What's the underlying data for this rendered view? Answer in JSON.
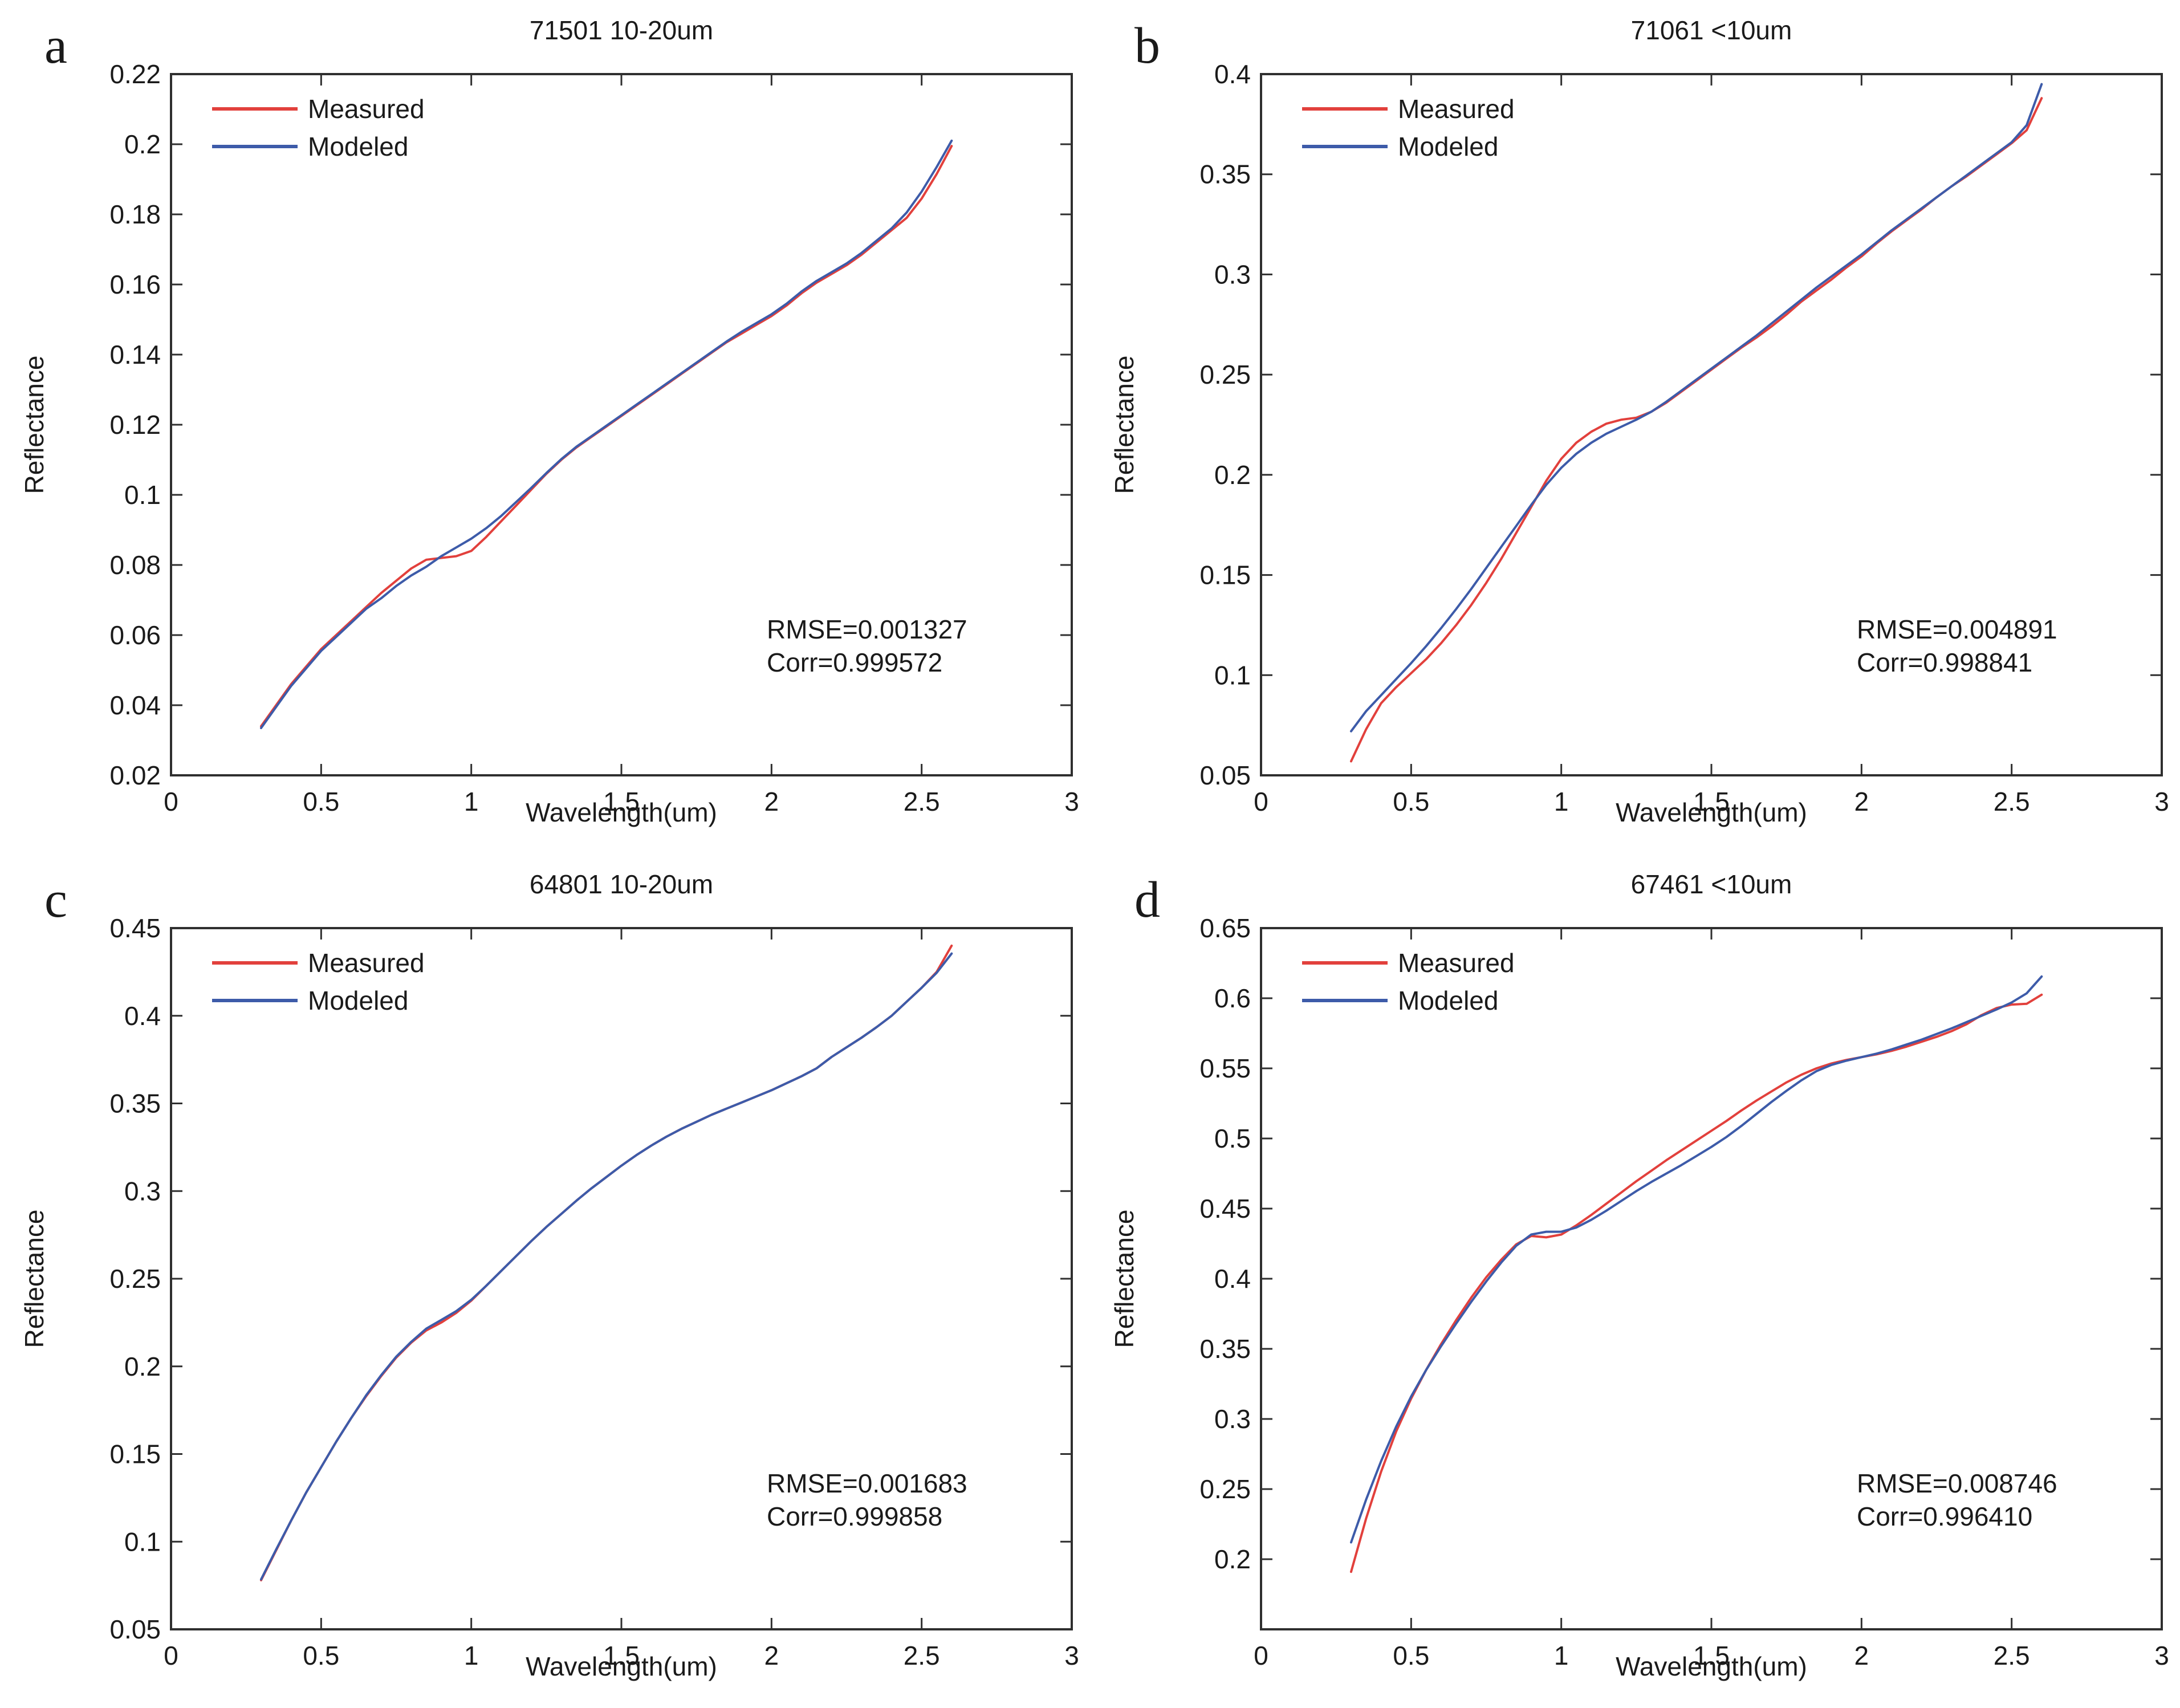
{
  "colors": {
    "measured": "#e2403c",
    "modeled": "#3d5ba9",
    "axis": "#2f2f2f",
    "text": "#1a1a1a",
    "background": "#ffffff"
  },
  "chart_data": [
    {
      "type": "line",
      "letter": "a",
      "title": "71501 10-20um",
      "xlabel": "Wavelength(um)",
      "ylabel": "Reflectance",
      "xlim": [
        0,
        3
      ],
      "ylim": [
        0.02,
        0.22
      ],
      "xticks": [
        0,
        0.5,
        1,
        1.5,
        2,
        2.5,
        3
      ],
      "yticks": [
        0.02,
        0.04,
        0.06,
        0.08,
        0.1,
        0.12,
        0.14,
        0.16,
        0.18,
        0.2,
        0.22
      ],
      "grid": false,
      "legend_position": "top-left",
      "annotations": [
        "RMSE=0.001327",
        "Corr=0.999572"
      ],
      "x": [
        0.3,
        0.35,
        0.4,
        0.45,
        0.5,
        0.55,
        0.6,
        0.65,
        0.7,
        0.75,
        0.8,
        0.85,
        0.9,
        0.95,
        1,
        1.05,
        1.1,
        1.15,
        1.2,
        1.25,
        1.3,
        1.35,
        1.4,
        1.45,
        1.5,
        1.55,
        1.6,
        1.65,
        1.7,
        1.75,
        1.8,
        1.85,
        1.9,
        1.95,
        2,
        2.05,
        2.1,
        2.15,
        2.2,
        2.25,
        2.3,
        2.35,
        2.4,
        2.45,
        2.5,
        2.55,
        2.6
      ],
      "series": [
        {
          "name": "Measured",
          "color": "#e2403c",
          "values": [
            0.034,
            0.04,
            0.046,
            0.051,
            0.056,
            0.06,
            0.064,
            0.068,
            0.072,
            0.0755,
            0.079,
            0.0815,
            0.082,
            0.0825,
            0.084,
            0.088,
            0.0925,
            0.097,
            0.1015,
            0.106,
            0.11,
            0.1135,
            0.1165,
            0.1195,
            0.1225,
            0.1255,
            0.1285,
            0.1315,
            0.1345,
            0.1375,
            0.1405,
            0.1435,
            0.146,
            0.1485,
            0.151,
            0.154,
            0.1575,
            0.1605,
            0.163,
            0.1655,
            0.1685,
            0.172,
            0.1755,
            0.179,
            0.1845,
            0.1915,
            0.1995
          ]
        },
        {
          "name": "Modeled",
          "color": "#3d5ba9",
          "values": [
            0.0335,
            0.0395,
            0.0455,
            0.0505,
            0.0555,
            0.0595,
            0.0635,
            0.0675,
            0.0705,
            0.074,
            0.077,
            0.0795,
            0.0825,
            0.085,
            0.0875,
            0.0905,
            0.094,
            0.098,
            0.102,
            0.1062,
            0.1102,
            0.1137,
            0.1167,
            0.1197,
            0.1227,
            0.1257,
            0.1287,
            0.1317,
            0.1347,
            0.1377,
            0.1407,
            0.1437,
            0.1465,
            0.149,
            0.1515,
            0.1545,
            0.158,
            0.161,
            0.1635,
            0.166,
            0.169,
            0.1725,
            0.176,
            0.1805,
            0.1865,
            0.1935,
            0.201
          ]
        }
      ]
    },
    {
      "type": "line",
      "letter": "b",
      "title": "71061 <10um",
      "xlabel": "Wavelength(um)",
      "ylabel": "Reflectance",
      "xlim": [
        0,
        3
      ],
      "ylim": [
        0.05,
        0.4
      ],
      "xticks": [
        0,
        0.5,
        1,
        1.5,
        2,
        2.5,
        3
      ],
      "yticks": [
        0.05,
        0.1,
        0.15,
        0.2,
        0.25,
        0.3,
        0.35,
        0.4
      ],
      "grid": false,
      "legend_position": "top-left",
      "annotations": [
        "RMSE=0.004891",
        "Corr=0.998841"
      ],
      "x": [
        0.3,
        0.35,
        0.4,
        0.45,
        0.5,
        0.55,
        0.6,
        0.65,
        0.7,
        0.75,
        0.8,
        0.85,
        0.9,
        0.95,
        1,
        1.05,
        1.1,
        1.15,
        1.2,
        1.25,
        1.3,
        1.35,
        1.4,
        1.45,
        1.5,
        1.55,
        1.6,
        1.65,
        1.7,
        1.75,
        1.8,
        1.85,
        1.9,
        1.95,
        2,
        2.05,
        2.1,
        2.15,
        2.2,
        2.25,
        2.3,
        2.35,
        2.4,
        2.45,
        2.5,
        2.55,
        2.6
      ],
      "series": [
        {
          "name": "Measured",
          "color": "#e2403c",
          "values": [
            0.057,
            0.073,
            0.086,
            0.094,
            0.101,
            0.108,
            0.116,
            0.125,
            0.135,
            0.146,
            0.158,
            0.171,
            0.184,
            0.197,
            0.208,
            0.216,
            0.2215,
            0.2255,
            0.2275,
            0.2285,
            0.2315,
            0.236,
            0.2415,
            0.247,
            0.2525,
            0.258,
            0.2635,
            0.2685,
            0.274,
            0.28,
            0.2865,
            0.292,
            0.2975,
            0.3035,
            0.309,
            0.3155,
            0.3215,
            0.327,
            0.3325,
            0.3385,
            0.344,
            0.349,
            0.3545,
            0.36,
            0.3655,
            0.372,
            0.388
          ]
        },
        {
          "name": "Modeled",
          "color": "#3d5ba9",
          "values": [
            0.072,
            0.082,
            0.09,
            0.098,
            0.106,
            0.1145,
            0.1235,
            0.133,
            0.143,
            0.1535,
            0.164,
            0.1745,
            0.185,
            0.195,
            0.2035,
            0.2105,
            0.216,
            0.2205,
            0.224,
            0.2275,
            0.2315,
            0.2365,
            0.242,
            0.2475,
            0.253,
            0.2585,
            0.264,
            0.2695,
            0.2755,
            0.2815,
            0.2875,
            0.2935,
            0.299,
            0.3045,
            0.31,
            0.316,
            0.322,
            0.3275,
            0.333,
            0.3385,
            0.344,
            0.3495,
            0.355,
            0.3605,
            0.366,
            0.3745,
            0.395
          ]
        }
      ]
    },
    {
      "type": "line",
      "letter": "c",
      "title": "64801 10-20um",
      "xlabel": "Wavelength(um)",
      "ylabel": "Reflectance",
      "xlim": [
        0,
        3
      ],
      "ylim": [
        0.05,
        0.45
      ],
      "xticks": [
        0,
        0.5,
        1,
        1.5,
        2,
        2.5,
        3
      ],
      "yticks": [
        0.05,
        0.1,
        0.15,
        0.2,
        0.25,
        0.3,
        0.35,
        0.4,
        0.45
      ],
      "grid": false,
      "legend_position": "top-left",
      "annotations": [
        "RMSE=0.001683",
        "Corr=0.999858"
      ],
      "x": [
        0.3,
        0.35,
        0.4,
        0.45,
        0.5,
        0.55,
        0.6,
        0.65,
        0.7,
        0.75,
        0.8,
        0.85,
        0.9,
        0.95,
        1,
        1.05,
        1.1,
        1.15,
        1.2,
        1.25,
        1.3,
        1.35,
        1.4,
        1.45,
        1.5,
        1.55,
        1.6,
        1.65,
        1.7,
        1.75,
        1.8,
        1.85,
        1.9,
        1.95,
        2,
        2.05,
        2.1,
        2.15,
        2.2,
        2.25,
        2.3,
        2.35,
        2.4,
        2.45,
        2.5,
        2.55,
        2.6
      ],
      "series": [
        {
          "name": "Measured",
          "color": "#e2403c",
          "values": [
            0.078,
            0.095,
            0.112,
            0.128,
            0.1425,
            0.157,
            0.1705,
            0.183,
            0.1945,
            0.205,
            0.2135,
            0.2205,
            0.225,
            0.2305,
            0.2375,
            0.246,
            0.2545,
            0.263,
            0.2715,
            0.2795,
            0.287,
            0.2945,
            0.3015,
            0.308,
            0.3145,
            0.3205,
            0.326,
            0.331,
            0.3355,
            0.3395,
            0.3435,
            0.347,
            0.3505,
            0.354,
            0.3575,
            0.3615,
            0.3655,
            0.37,
            0.3765,
            0.382,
            0.3875,
            0.3935,
            0.4,
            0.408,
            0.416,
            0.425,
            0.44
          ]
        },
        {
          "name": "Modeled",
          "color": "#3d5ba9",
          "values": [
            0.0785,
            0.0955,
            0.112,
            0.128,
            0.1425,
            0.157,
            0.1705,
            0.1835,
            0.195,
            0.2055,
            0.214,
            0.2215,
            0.2265,
            0.2315,
            0.238,
            0.246,
            0.2545,
            0.263,
            0.2715,
            0.2795,
            0.287,
            0.2945,
            0.3015,
            0.308,
            0.3145,
            0.3205,
            0.326,
            0.331,
            0.3355,
            0.3395,
            0.3435,
            0.347,
            0.3505,
            0.354,
            0.3575,
            0.3615,
            0.3655,
            0.37,
            0.3765,
            0.382,
            0.3875,
            0.3935,
            0.4,
            0.408,
            0.416,
            0.4245,
            0.4355
          ]
        }
      ]
    },
    {
      "type": "line",
      "letter": "d",
      "title": "67461 <10um",
      "xlabel": "Wavelength(um)",
      "ylabel": "Reflectance",
      "xlim": [
        0,
        3
      ],
      "ylim": [
        0.15,
        0.65
      ],
      "xticks": [
        0,
        0.5,
        1,
        1.5,
        2,
        2.5,
        3
      ],
      "yticks": [
        0.2,
        0.25,
        0.3,
        0.35,
        0.4,
        0.45,
        0.5,
        0.55,
        0.6,
        0.65
      ],
      "grid": false,
      "legend_position": "top-left",
      "annotations": [
        "RMSE=0.008746",
        "Corr=0.996410"
      ],
      "x": [
        0.3,
        0.35,
        0.4,
        0.45,
        0.5,
        0.55,
        0.6,
        0.65,
        0.7,
        0.75,
        0.8,
        0.85,
        0.9,
        0.95,
        1,
        1.05,
        1.1,
        1.15,
        1.2,
        1.25,
        1.3,
        1.35,
        1.4,
        1.45,
        1.5,
        1.55,
        1.6,
        1.65,
        1.7,
        1.75,
        1.8,
        1.85,
        1.9,
        1.95,
        2,
        2.05,
        2.1,
        2.15,
        2.2,
        2.25,
        2.3,
        2.35,
        2.4,
        2.45,
        2.5,
        2.55,
        2.6
      ],
      "series": [
        {
          "name": "Measured",
          "color": "#e2403c",
          "values": [
            0.191,
            0.229,
            0.2625,
            0.291,
            0.3145,
            0.335,
            0.3535,
            0.3705,
            0.3865,
            0.401,
            0.4135,
            0.4245,
            0.4305,
            0.4295,
            0.4315,
            0.438,
            0.4455,
            0.4535,
            0.4615,
            0.4695,
            0.477,
            0.4845,
            0.4915,
            0.4985,
            0.5055,
            0.5125,
            0.52,
            0.527,
            0.5335,
            0.54,
            0.5455,
            0.55,
            0.5535,
            0.556,
            0.558,
            0.56,
            0.5625,
            0.5655,
            0.569,
            0.5725,
            0.5765,
            0.5815,
            0.588,
            0.593,
            0.5955,
            0.596,
            0.6025
          ]
        },
        {
          "name": "Modeled",
          "color": "#3d5ba9",
          "values": [
            0.212,
            0.2425,
            0.27,
            0.2945,
            0.316,
            0.335,
            0.352,
            0.368,
            0.3835,
            0.398,
            0.4115,
            0.4235,
            0.4315,
            0.4335,
            0.4335,
            0.4365,
            0.442,
            0.4485,
            0.4555,
            0.4625,
            0.469,
            0.475,
            0.481,
            0.4875,
            0.494,
            0.501,
            0.509,
            0.5175,
            0.526,
            0.534,
            0.5415,
            0.548,
            0.5525,
            0.5555,
            0.558,
            0.5605,
            0.5635,
            0.567,
            0.5705,
            0.5745,
            0.5785,
            0.583,
            0.5875,
            0.592,
            0.597,
            0.6035,
            0.6155
          ]
        }
      ]
    }
  ]
}
